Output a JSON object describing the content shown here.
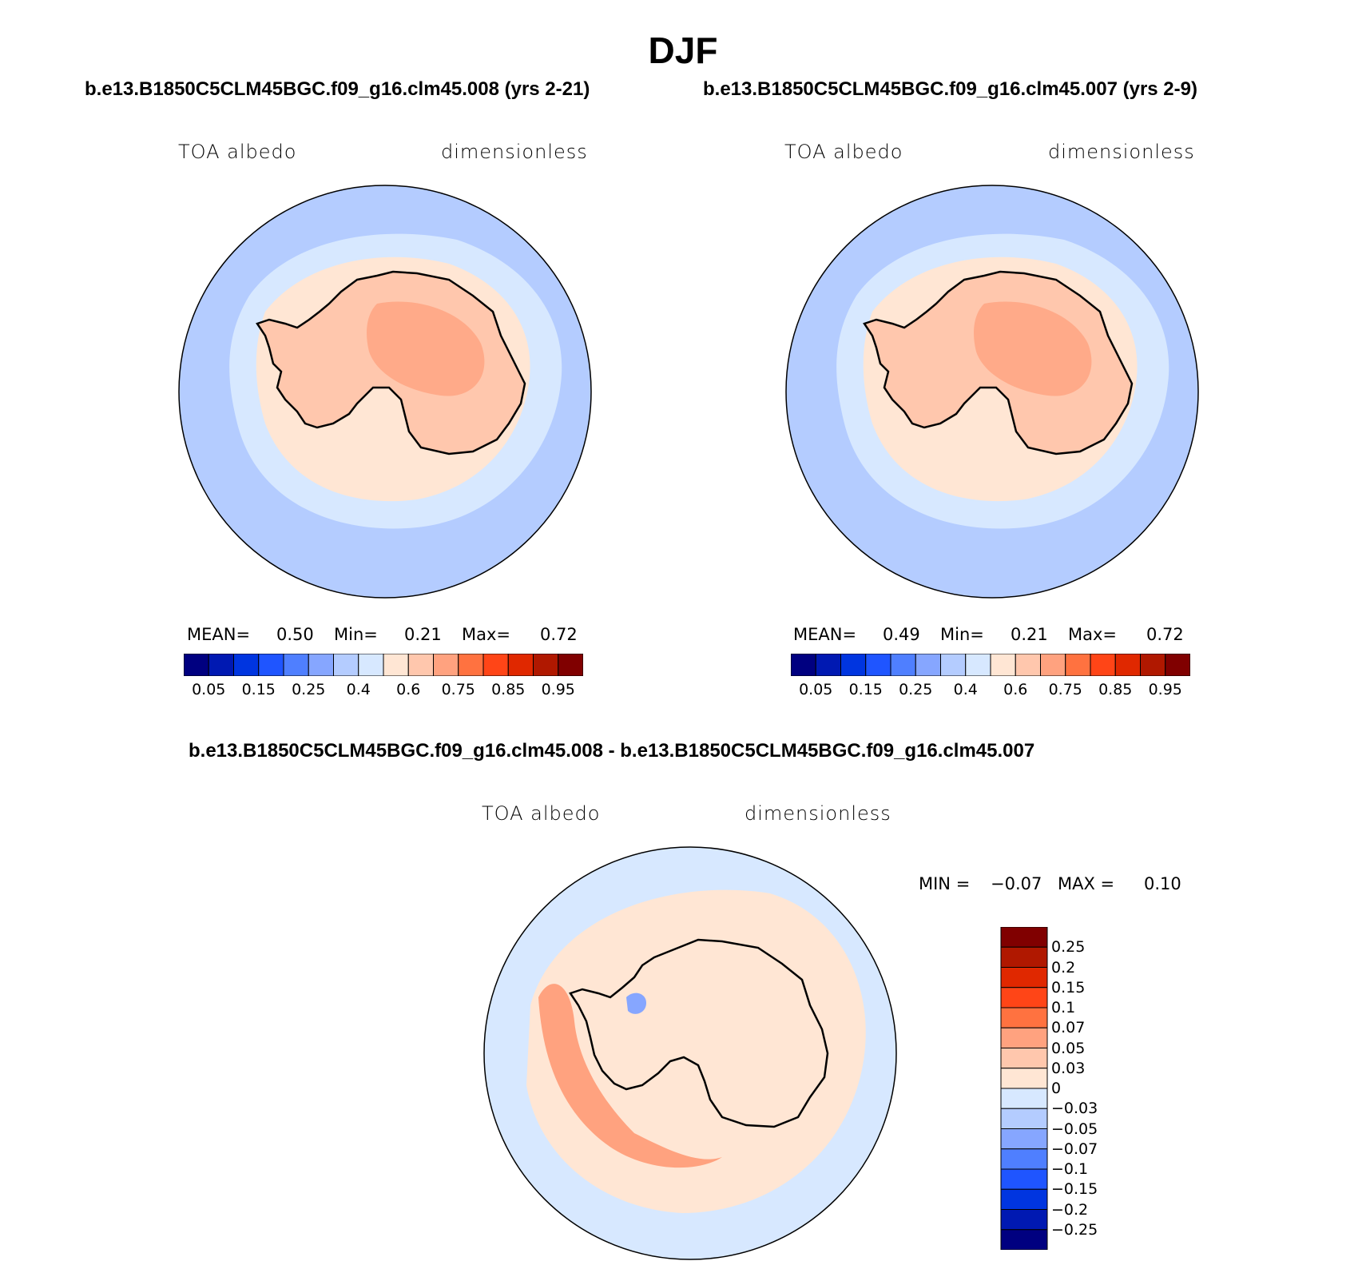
{
  "figure_title": "DJF",
  "panels": [
    {
      "case_title": "b.e13.B1850C5CLM45BGC.f09_g16.clm45.008 (yrs 2-21)",
      "left_label": "TOA albedo",
      "right_label": "dimensionless",
      "stats": {
        "mean_label": "MEAN=",
        "mean_value": "0.50",
        "min_label": "Min=",
        "min_value": "0.21",
        "max_label": "Max=",
        "max_value": "0.72"
      }
    },
    {
      "case_title": "b.e13.B1850C5CLM45BGC.f09_g16.clm45.007 (yrs 2-9)",
      "left_label": "TOA albedo",
      "right_label": "dimensionless",
      "stats": {
        "mean_label": "MEAN=",
        "mean_value": "0.49",
        "min_label": "Min=",
        "min_value": "0.21",
        "max_label": "Max=",
        "max_value": "0.72"
      }
    },
    {
      "case_title": "b.e13.B1850C5CLM45BGC.f09_g16.clm45.008 - b.e13.B1850C5CLM45BGC.f09_g16.clm45.007",
      "left_label": "TOA albedo",
      "right_label": "dimensionless",
      "stats": {
        "min_label": "MIN =",
        "min_value": "−0.07",
        "max_label": "MAX =",
        "max_value": "0.10"
      }
    }
  ],
  "abs_colorbar": {
    "colors": [
      "#000080",
      "#0019b2",
      "#0035e0",
      "#1f55ff",
      "#4f7fff",
      "#86a6ff",
      "#b4ccff",
      "#d7e8ff",
      "#ffe6d4",
      "#ffc7ad",
      "#ffa27f",
      "#ff7240",
      "#ff4517",
      "#e02800",
      "#b01800",
      "#800000"
    ],
    "labels": [
      "0.05",
      "0.15",
      "0.25",
      "0.4",
      "0.6",
      "0.75",
      "0.85",
      "0.95"
    ]
  },
  "diff_colorbar": {
    "colors": [
      "#800000",
      "#b01800",
      "#e02800",
      "#ff4517",
      "#ff7240",
      "#ffa27f",
      "#ffc7ad",
      "#ffe6d4",
      "#d7e8ff",
      "#b4ccff",
      "#86a6ff",
      "#4f7fff",
      "#1f55ff",
      "#0035e0",
      "#0019b2",
      "#000080"
    ],
    "labels": [
      "0.25",
      "0.2",
      "0.15",
      "0.1",
      "0.07",
      "0.05",
      "0.03",
      "0",
      "−0.03",
      "−0.05",
      "−0.07",
      "−0.1",
      "−0.15",
      "−0.2",
      "−0.25"
    ]
  }
}
